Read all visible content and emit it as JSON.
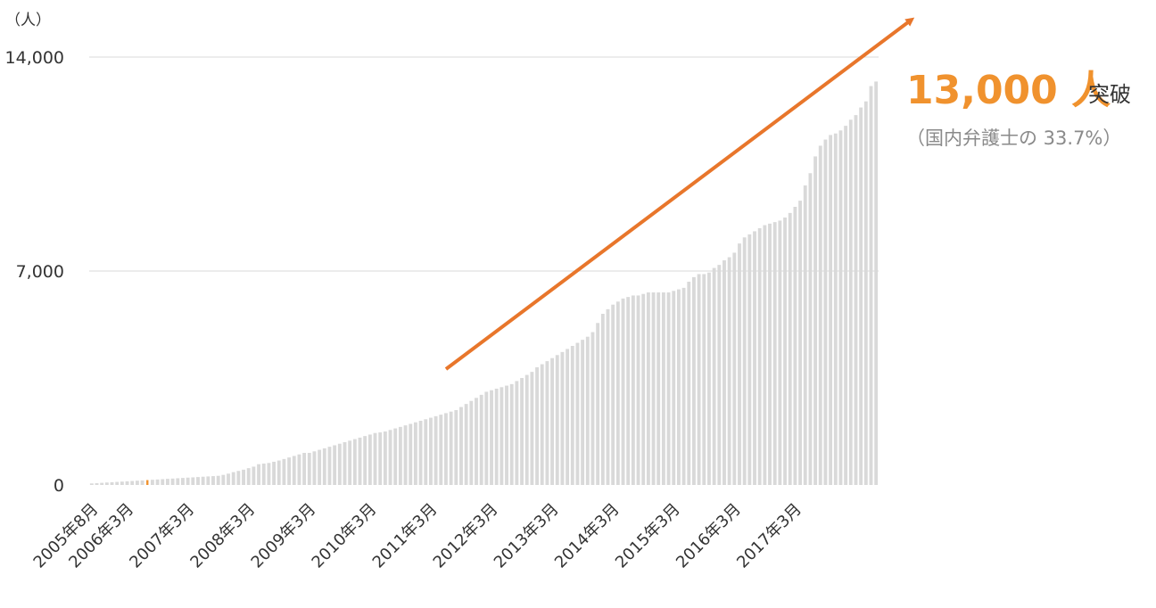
{
  "chart_data": {
    "type": "bar",
    "y_unit": "（人）",
    "ylim": [
      0,
      14000
    ],
    "y_ticks": [
      {
        "value": 0,
        "label": "0"
      },
      {
        "value": 7000,
        "label": "7,000"
      },
      {
        "value": 14000,
        "label": "14,000"
      }
    ],
    "grid": true,
    "x_tick_labels": [
      "2005年8月",
      "2006年3月",
      "2007年3月",
      "2008年3月",
      "2009年3月",
      "2010年3月",
      "2011年3月",
      "2012年3月",
      "2013年3月",
      "2014年3月",
      "2015年3月",
      "2016年3月",
      "2017年3月"
    ],
    "x_start": "2005-08",
    "x_end": "2017-03",
    "values": [
      50,
      60,
      70,
      80,
      90,
      100,
      110,
      120,
      130,
      140,
      150,
      160,
      170,
      180,
      190,
      200,
      210,
      220,
      230,
      240,
      250,
      260,
      270,
      280,
      290,
      300,
      330,
      370,
      420,
      460,
      500,
      550,
      600,
      680,
      700,
      720,
      760,
      800,
      850,
      900,
      950,
      1000,
      1050,
      1050,
      1100,
      1150,
      1200,
      1250,
      1300,
      1350,
      1400,
      1450,
      1500,
      1550,
      1600,
      1650,
      1700,
      1720,
      1750,
      1800,
      1850,
      1900,
      1950,
      2000,
      2050,
      2100,
      2150,
      2200,
      2250,
      2300,
      2350,
      2400,
      2450,
      2550,
      2650,
      2750,
      2850,
      2950,
      3050,
      3100,
      3150,
      3200,
      3250,
      3300,
      3400,
      3500,
      3600,
      3700,
      3850,
      3950,
      4050,
      4150,
      4250,
      4350,
      4450,
      4550,
      4650,
      4750,
      4850,
      5000,
      5300,
      5600,
      5750,
      5900,
      6000,
      6100,
      6150,
      6200,
      6200,
      6250,
      6300,
      6300,
      6300,
      6300,
      6300,
      6350,
      6400,
      6450,
      6650,
      6800,
      6900,
      6900,
      6950,
      7100,
      7200,
      7350,
      7450,
      7600,
      7900,
      8100,
      8200,
      8300,
      8400,
      8500,
      8550,
      8600,
      8650,
      8750,
      8900,
      9100,
      9300,
      9800,
      10200,
      10750,
      11100,
      11300,
      11450,
      11500,
      11600,
      11750,
      11950,
      12100,
      12350,
      12550,
      13050,
      13200
    ],
    "highlight_indices": [
      11,
      161
    ],
    "colors": {
      "bar": "#d9d9d9",
      "highlight": "#f0922e",
      "arrow": "#e8762b",
      "grid": "#d9d9d9"
    },
    "annotation": {
      "number": "13,000 人",
      "suffix": "突破",
      "note": "（国内弁護士の 33.7%）"
    }
  }
}
